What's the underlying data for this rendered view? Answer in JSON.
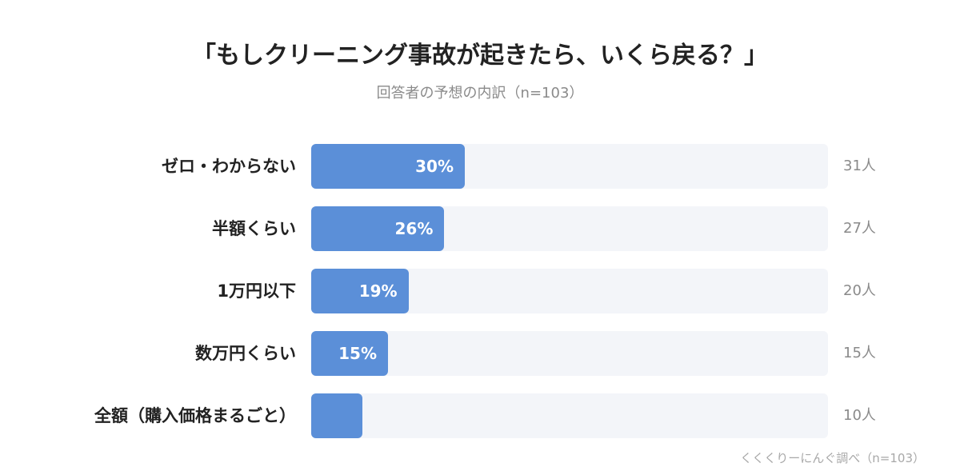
{
  "chart_data": {
    "type": "bar",
    "orientation": "horizontal",
    "title": "「もしクリーニング事故が起きたら、いくら戻る？」",
    "subtitle": "回答者の予想の内訳（n=103）",
    "categories": [
      "ゼロ・わからない",
      "半額くらい",
      "1万円以下",
      "数万円くらい",
      "全額（購入価格まるごと）"
    ],
    "values": [
      30,
      26,
      19,
      15,
      10
    ],
    "value_labels": [
      "30%",
      "26%",
      "19%",
      "15%",
      ""
    ],
    "counts": [
      "31人",
      "27人",
      "20人",
      "15人",
      "10人"
    ],
    "xlim": [
      0,
      100
    ],
    "unit": "%",
    "grid": false,
    "legend": "none",
    "source": "くくくりーにんぐ調べ（n=103）"
  },
  "colors": {
    "bar": "#5b8fd8",
    "track": "#f3f5f9",
    "title": "#222222",
    "muted": "#8a8a8a",
    "source": "#a8a8a8"
  }
}
